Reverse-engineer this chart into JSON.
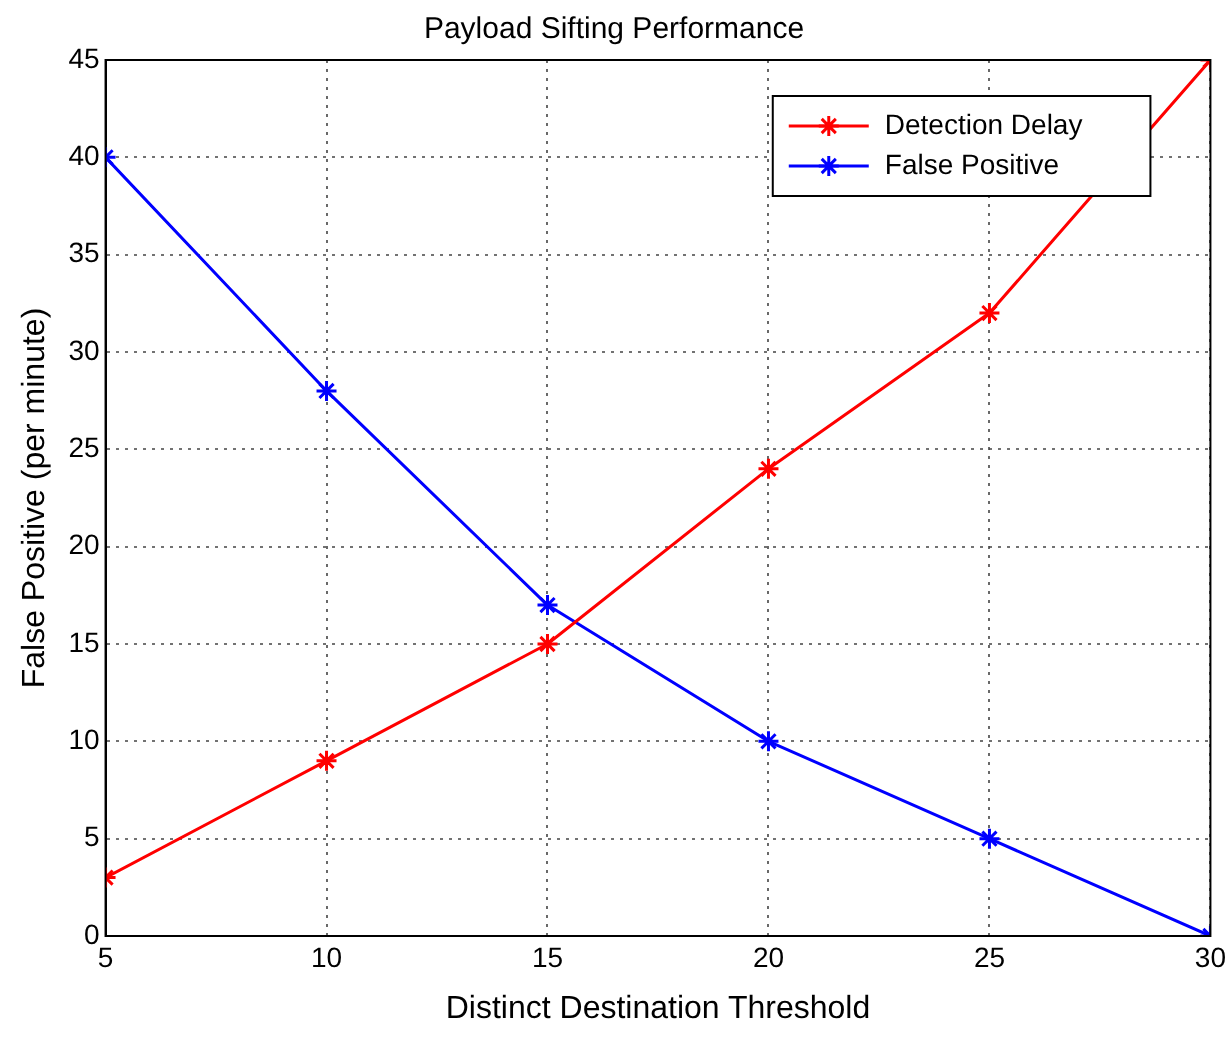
{
  "chart_data": {
    "type": "line",
    "title": "Payload Sifting Performance",
    "xlabel": "Distinct Destination Threshold",
    "ylabel": "False Positive (per minute)",
    "x": [
      5,
      10,
      15,
      20,
      25,
      30
    ],
    "series": [
      {
        "name": "Detection Delay",
        "color": "#ff0000",
        "values": [
          3,
          9,
          15,
          24,
          32,
          45
        ]
      },
      {
        "name": "False Positive",
        "color": "#0000ff",
        "values": [
          40,
          28,
          17,
          10,
          5,
          0
        ]
      }
    ],
    "xlim": [
      5,
      30
    ],
    "xticks": [
      5,
      10,
      15,
      20,
      25,
      30
    ],
    "ylim": [
      0,
      45
    ],
    "yticks": [
      0,
      5,
      10,
      15,
      20,
      25,
      30,
      35,
      40,
      45
    ],
    "grid": true,
    "legend": "top right",
    "marker": "cross",
    "line_style": "solid"
  }
}
